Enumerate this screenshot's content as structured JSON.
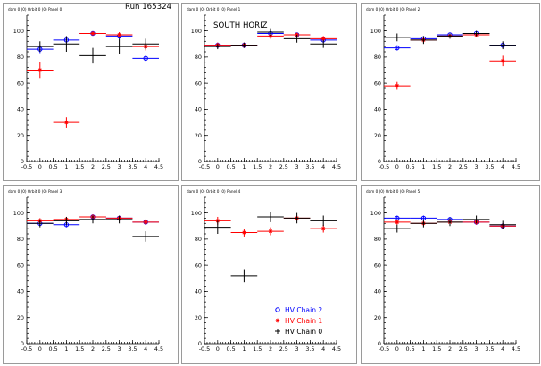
{
  "chart_data": [
    {
      "type": "scatter",
      "title": "dam 0 (0) Orbit 0 (0) Panel 0",
      "annotation": "Run 165324",
      "xlim": [
        -0.5,
        4.5
      ],
      "ylim": [
        0,
        112
      ],
      "x_ticks": [
        "-0.5",
        "0",
        "0.5",
        "1",
        "1.5",
        "2",
        "2.5",
        "3",
        "3.5",
        "4",
        "4.5"
      ],
      "y_ticks": [
        "0",
        "20",
        "40",
        "60",
        "80",
        "100"
      ],
      "grid": false,
      "series": [
        {
          "color": "#0000ff",
          "marker": "circle",
          "x": [
            0,
            1,
            2,
            3,
            4
          ],
          "y": [
            86,
            93,
            98,
            96,
            79
          ],
          "yerr": [
            3,
            2,
            1,
            2,
            2
          ]
        },
        {
          "color": "#ff0000",
          "marker": "star",
          "x": [
            0,
            1,
            2,
            3,
            4
          ],
          "y": [
            70,
            30,
            98,
            97,
            88
          ],
          "yerr": [
            6,
            4,
            1,
            2,
            3
          ]
        },
        {
          "color": "#000000",
          "marker": "cross",
          "x": [
            0,
            1,
            2,
            3,
            4
          ],
          "y": [
            88,
            90,
            81,
            88,
            90
          ],
          "yerr": [
            4,
            6,
            6,
            6,
            4
          ]
        }
      ]
    },
    {
      "type": "scatter",
      "title": "dam 0 (0) Orbit 0 (0) Panel 1",
      "annotation": "SOUTH HORIZ",
      "xlim": [
        -0.5,
        4.5
      ],
      "ylim": [
        0,
        112
      ],
      "x_ticks": [
        "-0.5",
        "0",
        "0.5",
        "1",
        "1.5",
        "2",
        "2.5",
        "3",
        "3.5",
        "4",
        "4.5"
      ],
      "y_ticks": [
        "0",
        "20",
        "40",
        "60",
        "80",
        "100"
      ],
      "grid": false,
      "series": [
        {
          "color": "#0000ff",
          "marker": "circle",
          "x": [
            0,
            1,
            2,
            3,
            4
          ],
          "y": [
            89,
            89,
            98,
            97,
            93
          ],
          "yerr": [
            2,
            2,
            1,
            1,
            2
          ]
        },
        {
          "color": "#ff0000",
          "marker": "star",
          "x": [
            0,
            1,
            2,
            3,
            4
          ],
          "y": [
            89,
            89,
            96,
            97,
            94
          ],
          "yerr": [
            2,
            2,
            2,
            1,
            2
          ]
        },
        {
          "color": "#000000",
          "marker": "cross",
          "x": [
            0,
            1,
            2,
            3,
            4
          ],
          "y": [
            88,
            89,
            99,
            94,
            90
          ],
          "yerr": [
            2,
            2,
            3,
            3,
            3
          ]
        }
      ]
    },
    {
      "type": "scatter",
      "title": "dam 0 (0) Orbit 0 (0) Panel 2",
      "xlim": [
        -0.5,
        4.5
      ],
      "ylim": [
        0,
        112
      ],
      "x_ticks": [
        "-0.5",
        "0",
        "0.5",
        "1",
        "1.5",
        "2",
        "2.5",
        "3",
        "3.5",
        "4",
        "4.5"
      ],
      "y_ticks": [
        "0",
        "20",
        "40",
        "60",
        "80",
        "100"
      ],
      "grid": false,
      "series": [
        {
          "color": "#0000ff",
          "marker": "circle",
          "x": [
            0,
            1,
            2,
            3,
            4
          ],
          "y": [
            87,
            94,
            97,
            98,
            89
          ],
          "yerr": [
            2,
            2,
            1,
            1,
            2
          ]
        },
        {
          "color": "#ff0000",
          "marker": "star",
          "x": [
            0,
            1,
            2,
            3,
            4
          ],
          "y": [
            58,
            93,
            96,
            97,
            77
          ],
          "yerr": [
            3,
            2,
            1,
            1,
            4
          ]
        },
        {
          "color": "#000000",
          "marker": "cross",
          "x": [
            0,
            1,
            2,
            3,
            4
          ],
          "y": [
            95,
            93,
            96,
            98,
            89
          ],
          "yerr": [
            3,
            3,
            2,
            2,
            3
          ]
        }
      ]
    },
    {
      "type": "scatter",
      "title": "dam 0 (0) Orbit 0 (0) Panel 3",
      "xlim": [
        -0.5,
        4.5
      ],
      "ylim": [
        0,
        112
      ],
      "x_ticks": [
        "-0.5",
        "0",
        "0.5",
        "1",
        "1.5",
        "2",
        "2.5",
        "3",
        "3.5",
        "4",
        "4.5"
      ],
      "y_ticks": [
        "0",
        "20",
        "40",
        "60",
        "80",
        "100"
      ],
      "grid": false,
      "series": [
        {
          "color": "#0000ff",
          "marker": "circle",
          "x": [
            0,
            1,
            2,
            3,
            4
          ],
          "y": [
            92,
            91,
            97,
            96,
            93
          ],
          "yerr": [
            2,
            2,
            2,
            2,
            2
          ]
        },
        {
          "color": "#ff0000",
          "marker": "star",
          "x": [
            0,
            1,
            2,
            3,
            4
          ],
          "y": [
            94,
            95,
            97,
            96,
            93
          ],
          "yerr": [
            2,
            2,
            2,
            2,
            2
          ]
        },
        {
          "color": "#000000",
          "marker": "cross",
          "x": [
            0,
            1,
            2,
            3,
            4
          ],
          "y": [
            92,
            94,
            95,
            95,
            82
          ],
          "yerr": [
            3,
            3,
            3,
            3,
            4
          ]
        }
      ]
    },
    {
      "type": "scatter",
      "title": "dam 0 (0) Orbit 0 (0) Panel 4",
      "xlim": [
        -0.5,
        4.5
      ],
      "ylim": [
        0,
        112
      ],
      "x_ticks": [
        "-0.5",
        "0",
        "0.5",
        "1",
        "1.5",
        "2",
        "2.5",
        "3",
        "3.5",
        "4",
        "4.5"
      ],
      "y_ticks": [
        "0",
        "20",
        "40",
        "60",
        "80",
        "100"
      ],
      "grid": false,
      "legend": {
        "position": "bottom-right",
        "entries": [
          "HV Chain 2",
          "HV Chain 1",
          "HV Chain 0"
        ]
      },
      "series": [
        {
          "name": "HV Chain 2",
          "color": "#0000ff",
          "marker": "circle",
          "x": [],
          "y": [],
          "yerr": []
        },
        {
          "name": "HV Chain 1",
          "color": "#ff0000",
          "marker": "star",
          "x": [
            0,
            1,
            2,
            3,
            4
          ],
          "y": [
            94,
            85,
            86,
            96,
            88
          ],
          "yerr": [
            3,
            3,
            3,
            2,
            3
          ]
        },
        {
          "name": "HV Chain 0",
          "color": "#000000",
          "marker": "cross",
          "x": [
            0,
            1,
            2,
            3,
            4
          ],
          "y": [
            89,
            52,
            97,
            96,
            94
          ],
          "yerr": [
            5,
            5,
            4,
            4,
            4
          ]
        }
      ]
    },
    {
      "type": "scatter",
      "title": "dam 0 (0) Orbit 0 (0) Panel 5",
      "xlim": [
        -0.5,
        4.5
      ],
      "ylim": [
        0,
        112
      ],
      "x_ticks": [
        "-0.5",
        "0",
        "0.5",
        "1",
        "1.5",
        "2",
        "2.5",
        "3",
        "3.5",
        "4",
        "4.5"
      ],
      "y_ticks": [
        "0",
        "20",
        "40",
        "60",
        "80",
        "100"
      ],
      "grid": false,
      "series": [
        {
          "color": "#0000ff",
          "marker": "circle",
          "x": [
            0,
            1,
            2,
            3,
            4
          ],
          "y": [
            96,
            96,
            95,
            93,
            90
          ],
          "yerr": [
            2,
            2,
            2,
            2,
            2
          ]
        },
        {
          "color": "#ff0000",
          "marker": "star",
          "x": [
            0,
            1,
            2,
            3,
            4
          ],
          "y": [
            93,
            92,
            93,
            93,
            90
          ],
          "yerr": [
            2,
            2,
            2,
            2,
            2
          ]
        },
        {
          "color": "#000000",
          "marker": "cross",
          "x": [
            0,
            1,
            2,
            3,
            4
          ],
          "y": [
            88,
            92,
            93,
            95,
            91
          ],
          "yerr": [
            3,
            3,
            3,
            3,
            3
          ]
        }
      ]
    }
  ]
}
